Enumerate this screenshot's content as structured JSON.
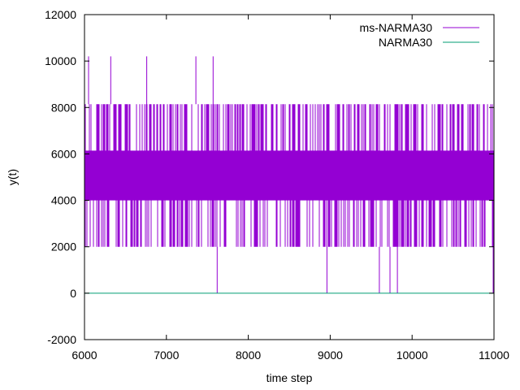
{
  "chart_data": {
    "type": "line",
    "xlabel": "time step",
    "ylabel": "y(t)",
    "xlim": [
      6000,
      11000
    ],
    "ylim": [
      -2000,
      12000
    ],
    "xticks": [
      6000,
      7000,
      8000,
      9000,
      10000,
      11000
    ],
    "yticks": [
      -2000,
      0,
      2000,
      4000,
      6000,
      8000,
      10000,
      12000
    ],
    "grid": false,
    "legend_position": "top-right",
    "series": [
      {
        "name": "ms-NARMA30",
        "color": "#9400d3",
        "dense_band": [
          4000,
          6140
        ],
        "extent": [
          2000,
          8140
        ],
        "spikes_to_10200": [
          6050,
          6320,
          6760,
          7360,
          7570
        ],
        "drops_to_0": [
          7620,
          8960,
          9600,
          9730,
          9820,
          10990
        ],
        "x": [
          6000,
          7000,
          8000,
          9000,
          10000,
          11000
        ],
        "values": [
          5070,
          5070,
          5070,
          5070,
          5070,
          5070
        ]
      },
      {
        "name": "NARMA30",
        "color": "#009e73",
        "x": [
          6000,
          7000,
          8000,
          9000,
          10000,
          11000
        ],
        "values": [
          0,
          0,
          0,
          0,
          0,
          0
        ]
      }
    ]
  }
}
